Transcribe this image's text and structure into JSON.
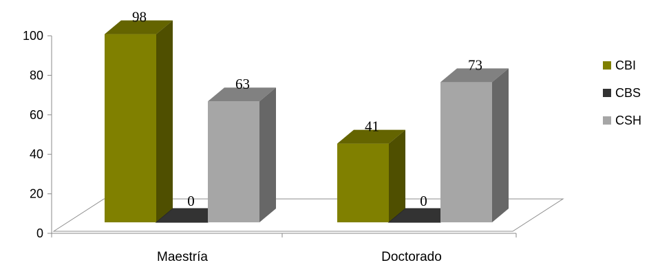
{
  "chart_data": {
    "type": "bar",
    "title": "",
    "xlabel": "",
    "ylabel": "",
    "ylim": [
      0,
      100
    ],
    "yticks": [
      0,
      20,
      40,
      60,
      80,
      100
    ],
    "categories": [
      "Maestría",
      "Doctorado"
    ],
    "series": [
      {
        "name": "CBI",
        "values": [
          98,
          41
        ],
        "color": "#808000"
      },
      {
        "name": "CBS",
        "values": [
          0,
          0
        ],
        "color": "#333333"
      },
      {
        "name": "CSH",
        "values": [
          63,
          73
        ],
        "color": "#a6a6a6"
      }
    ],
    "grid": false,
    "three_d": true,
    "legend_position": "right"
  }
}
